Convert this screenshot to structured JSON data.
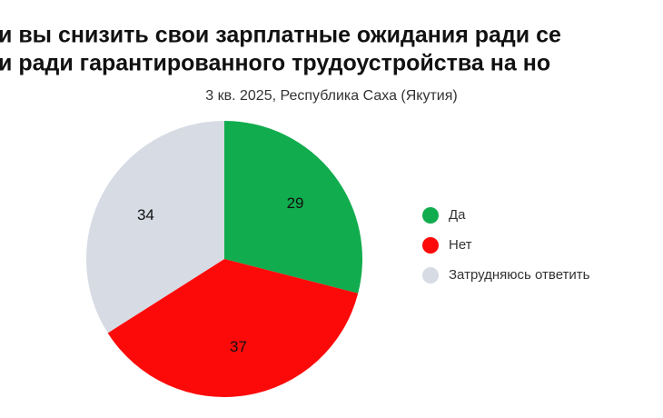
{
  "chart_data": {
    "type": "pie",
    "title": [
      "и вы снизить свои зарплатные ожидания ради се",
      "и ради гарантированного трудоустройства на но"
    ],
    "subtitle": "3 кв. 2025, Республика Саха (Якутия)",
    "categories": [
      "Да",
      "Нет",
      "Затрудняюсь ответить"
    ],
    "values": [
      29,
      37,
      34
    ],
    "colors": [
      "#11ac4e",
      "#fc0a0a",
      "#d6dbe4"
    ],
    "legend": "right"
  }
}
